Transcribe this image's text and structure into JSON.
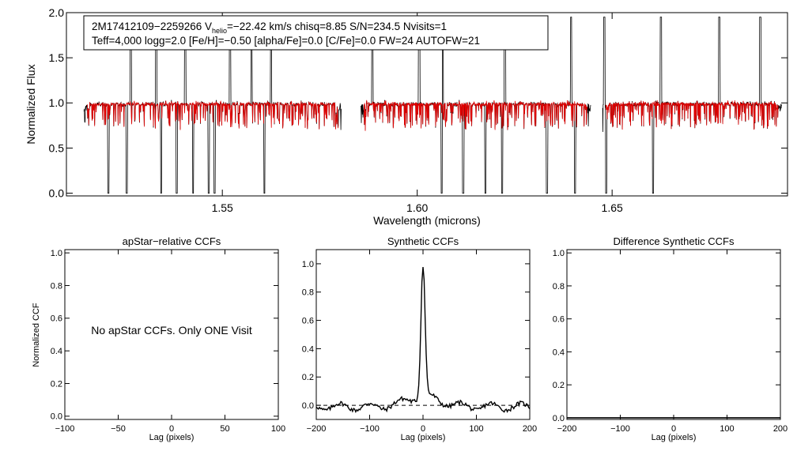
{
  "chart_data": [
    {
      "type": "line",
      "id": "spectrum",
      "title_line1_prefix": "2M17412109−2259266  V",
      "title_line1_sub": "helio",
      "title_line1_suffix": "=−22.42 km/s  chisq=8.85  S/N=234.5  Nvisits=1",
      "title_line2": "Teff=4,000 logg=2.0 [Fe/H]=−0.50 [alpha/Fe]=0.0 [C/Fe]=0.0 FW=24 AUTOFW=21",
      "xlabel": "Wavelength (microns)",
      "ylabel": "Normalized Flux",
      "xlim": [
        1.51,
        1.695
      ],
      "ylim": [
        -0.03,
        2.0
      ],
      "xticks": [
        1.55,
        1.6,
        1.65
      ],
      "xtick_labels": [
        "1.55",
        "1.60",
        "1.65"
      ],
      "yticks": [
        0.0,
        0.5,
        1.0,
        1.5,
        2.0
      ],
      "ytick_labels": [
        "0.0",
        "0.5",
        "1.0",
        "1.5",
        "2.0"
      ],
      "chips": [
        [
          1.5145,
          1.5805
        ],
        [
          1.5855,
          1.6445
        ],
        [
          1.6475,
          1.6935
        ]
      ],
      "series": [
        {
          "name": "observed",
          "color": "#000000",
          "emission_lines": [
            1.5265,
            1.533,
            1.5405,
            1.552,
            1.5575,
            1.5625,
            1.5885,
            1.6005,
            1.6065,
            1.6225,
            1.6395,
            1.648,
            1.6625,
            1.6775,
            1.688
          ],
          "absorption_lines": [
            1.5208,
            1.5255,
            1.5343,
            1.5383,
            1.5425,
            1.5465,
            1.548,
            1.5608,
            1.6063,
            1.6118,
            1.6175,
            1.6218,
            1.6333,
            1.6405,
            1.6485,
            1.6605
          ]
        },
        {
          "name": "model",
          "color": "#e00000"
        }
      ]
    },
    {
      "type": "line",
      "id": "apstar_ccf",
      "title": "apStar−relative CCFs",
      "xlabel": "Lag (pixels)",
      "ylabel": "Normalized CCF",
      "xlim": [
        -100,
        100
      ],
      "ylim": [
        -0.02,
        1.02
      ],
      "xticks": [
        -100,
        -50,
        0,
        50,
        100
      ],
      "xtick_labels": [
        "−100",
        "−50",
        "0",
        "50",
        "100"
      ],
      "yticks": [
        0.0,
        0.2,
        0.4,
        0.6,
        0.8,
        1.0
      ],
      "ytick_labels": [
        "0.0",
        "0.2",
        "0.4",
        "0.6",
        "0.8",
        "1.0"
      ],
      "annotation": "No apStar CCFs.  Only ONE Visit",
      "series": []
    },
    {
      "type": "line",
      "id": "synthetic_ccf",
      "title": "Synthetic CCFs",
      "xlabel": "Lag (pixels)",
      "xlim": [
        -200,
        200
      ],
      "ylim": [
        -0.1,
        1.1
      ],
      "xticks": [
        -200,
        -100,
        0,
        100,
        200
      ],
      "xtick_labels": [
        "−200",
        "−100",
        "0",
        "100",
        "200"
      ],
      "yticks": [
        0.0,
        0.2,
        0.4,
        0.6,
        0.8,
        1.0
      ],
      "ytick_labels": [
        "0.0",
        "0.2",
        "0.4",
        "0.6",
        "0.8",
        "1.0"
      ],
      "series": [
        {
          "name": "ccf",
          "color": "#000000",
          "peak_lag": 0,
          "peak_value": 1.0
        },
        {
          "name": "zero-line",
          "color": "#000000",
          "style": "dashed",
          "value": 0.0
        }
      ]
    },
    {
      "type": "line",
      "id": "difference_ccf",
      "title": "Difference Synthetic CCFs",
      "xlabel": "Lag (pixels)",
      "xlim": [
        -200,
        200
      ],
      "ylim": [
        -0.01,
        1.02
      ],
      "xticks": [
        -200,
        -100,
        0,
        100,
        200
      ],
      "xtick_labels": [
        "−200",
        "−100",
        "0",
        "100",
        "200"
      ],
      "yticks": [
        0.0,
        0.2,
        0.4,
        0.6,
        0.8,
        1.0
      ],
      "ytick_labels": [
        "0.0",
        "0.2",
        "0.4",
        "0.6",
        "0.8",
        "1.0"
      ],
      "series": [
        {
          "name": "difference",
          "color": "#000000",
          "value": 0.0
        }
      ]
    }
  ]
}
